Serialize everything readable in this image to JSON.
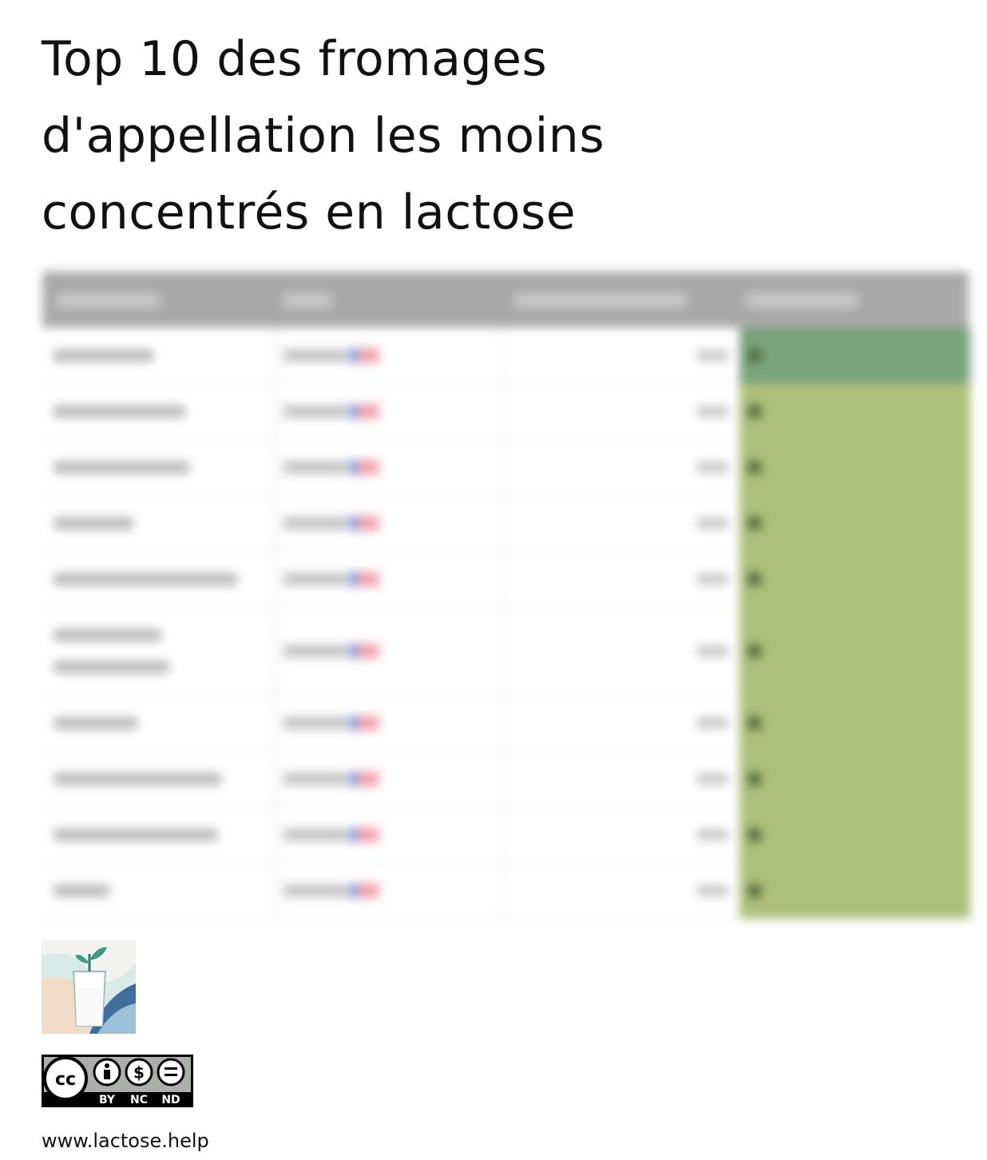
{
  "header": {
    "title": "Top 10 des fromages d'appellation les moins concentrés en lactose"
  },
  "license": {
    "cc": "cc",
    "labels": [
      "BY",
      "NC",
      "ND"
    ]
  },
  "footer": {
    "url": "www.lactose.help"
  }
}
